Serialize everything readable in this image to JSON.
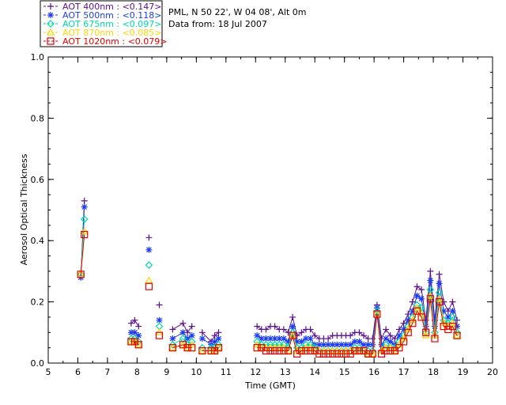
{
  "header": {
    "site": "PML, N 50 22', W 04 08', Alt 0m",
    "date": "Data from: 18 Jul 2007"
  },
  "legend": [
    {
      "label": "AOT  400nm : <0.147>",
      "color": "#5b0f8f",
      "marker": "plus"
    },
    {
      "label": "AOT  500nm : <0.118>",
      "color": "#1c3cf0",
      "marker": "star"
    },
    {
      "label": "AOT  675nm : <0.097>",
      "color": "#00d9a8",
      "marker": "diamond"
    },
    {
      "label": "AOT  870nm : <0.085>",
      "color": "#ffd400",
      "marker": "triangle"
    },
    {
      "label": "AOT 1020nm : <0.079>",
      "color": "#e60000",
      "marker": "square"
    }
  ],
  "chart_data": {
    "type": "line",
    "xlabel": "Time (GMT)",
    "ylabel": "Aerosol Optical Thickness",
    "xlim": [
      5,
      20
    ],
    "ylim": [
      0.0,
      1.0
    ],
    "xticks": [
      "5",
      "6",
      "7",
      "8",
      "9",
      "10",
      "11",
      "12",
      "13",
      "14",
      "15",
      "16",
      "17",
      "18",
      "19",
      "20"
    ],
    "yticks": [
      "0.0",
      "0.2",
      "0.4",
      "0.6",
      "0.8",
      "1.0"
    ],
    "x": [
      6.1,
      6.22,
      7.8,
      7.92,
      8.05,
      8.4,
      8.75,
      9.2,
      9.55,
      9.7,
      9.85,
      10.2,
      10.5,
      10.62,
      10.75,
      12.05,
      12.2,
      12.35,
      12.5,
      12.65,
      12.8,
      12.95,
      13.1,
      13.25,
      13.4,
      13.55,
      13.7,
      13.85,
      14.0,
      14.15,
      14.3,
      14.45,
      14.6,
      14.75,
      14.9,
      15.05,
      15.2,
      15.35,
      15.5,
      15.65,
      15.8,
      15.95,
      16.1,
      16.25,
      16.4,
      16.55,
      16.7,
      16.85,
      17.0,
      17.15,
      17.3,
      17.45,
      17.6,
      17.75,
      17.9,
      18.05,
      18.2,
      18.35,
      18.5,
      18.65,
      18.8
    ],
    "series": [
      {
        "name": "AOT  400nm : <0.147>",
        "values": [
          0.28,
          0.53,
          0.13,
          0.14,
          0.12,
          0.41,
          0.19,
          0.11,
          0.13,
          0.1,
          0.12,
          0.1,
          0.07,
          0.09,
          0.1,
          0.12,
          0.11,
          0.11,
          0.12,
          0.12,
          0.11,
          0.11,
          0.1,
          0.15,
          0.09,
          0.1,
          0.11,
          0.11,
          0.09,
          0.08,
          0.08,
          0.08,
          0.09,
          0.09,
          0.09,
          0.09,
          0.09,
          0.1,
          0.1,
          0.09,
          0.08,
          0.08,
          0.19,
          0.08,
          0.11,
          0.09,
          0.08,
          0.11,
          0.13,
          0.16,
          0.2,
          0.25,
          0.24,
          0.14,
          0.3,
          0.14,
          0.29,
          0.2,
          0.17,
          0.2,
          0.14
        ]
      },
      {
        "name": "AOT  500nm : <0.118>",
        "values": [
          0.28,
          0.51,
          0.1,
          0.1,
          0.09,
          0.37,
          0.14,
          0.08,
          0.1,
          0.08,
          0.09,
          0.08,
          0.06,
          0.07,
          0.08,
          0.09,
          0.08,
          0.08,
          0.08,
          0.08,
          0.08,
          0.08,
          0.07,
          0.12,
          0.07,
          0.07,
          0.08,
          0.08,
          0.06,
          0.06,
          0.06,
          0.06,
          0.06,
          0.06,
          0.06,
          0.06,
          0.06,
          0.07,
          0.07,
          0.06,
          0.06,
          0.06,
          0.18,
          0.06,
          0.08,
          0.07,
          0.06,
          0.09,
          0.11,
          0.14,
          0.17,
          0.22,
          0.21,
          0.12,
          0.27,
          0.12,
          0.26,
          0.17,
          0.15,
          0.17,
          0.12
        ]
      },
      {
        "name": "AOT  675nm : <0.097>",
        "values": [
          0.29,
          0.47,
          0.08,
          0.08,
          0.07,
          0.32,
          0.12,
          0.06,
          0.08,
          0.06,
          0.07,
          0.05,
          0.05,
          0.05,
          0.06,
          0.07,
          0.06,
          0.06,
          0.06,
          0.06,
          0.06,
          0.06,
          0.05,
          0.1,
          0.05,
          0.05,
          0.06,
          0.06,
          0.05,
          0.04,
          0.04,
          0.04,
          0.04,
          0.04,
          0.04,
          0.04,
          0.04,
          0.05,
          0.05,
          0.04,
          0.04,
          0.04,
          0.17,
          0.04,
          0.06,
          0.05,
          0.05,
          0.07,
          0.09,
          0.12,
          0.15,
          0.19,
          0.18,
          0.1,
          0.24,
          0.1,
          0.23,
          0.14,
          0.13,
          0.15,
          0.1
        ]
      },
      {
        "name": "AOT  870nm : <0.085>",
        "values": [
          0.29,
          0.43,
          0.07,
          0.07,
          0.06,
          0.27,
          0.1,
          0.05,
          0.06,
          0.05,
          0.06,
          0.04,
          0.04,
          0.04,
          0.05,
          0.06,
          0.05,
          0.05,
          0.05,
          0.05,
          0.05,
          0.05,
          0.04,
          0.09,
          0.04,
          0.04,
          0.05,
          0.05,
          0.04,
          0.04,
          0.04,
          0.04,
          0.04,
          0.04,
          0.04,
          0.04,
          0.04,
          0.04,
          0.04,
          0.04,
          0.03,
          0.03,
          0.16,
          0.04,
          0.05,
          0.05,
          0.04,
          0.06,
          0.08,
          0.11,
          0.14,
          0.18,
          0.16,
          0.09,
          0.22,
          0.09,
          0.21,
          0.13,
          0.12,
          0.13,
          0.09
        ]
      },
      {
        "name": "AOT 1020nm : <0.079>",
        "values": [
          0.29,
          0.42,
          0.07,
          0.07,
          0.06,
          0.25,
          0.09,
          0.05,
          0.06,
          0.05,
          0.05,
          0.04,
          0.04,
          0.04,
          0.05,
          0.05,
          0.05,
          0.04,
          0.04,
          0.04,
          0.04,
          0.04,
          0.04,
          0.09,
          0.03,
          0.04,
          0.04,
          0.04,
          0.04,
          0.03,
          0.03,
          0.03,
          0.03,
          0.03,
          0.03,
          0.03,
          0.03,
          0.04,
          0.04,
          0.04,
          0.03,
          0.03,
          0.16,
          0.03,
          0.04,
          0.04,
          0.04,
          0.05,
          0.07,
          0.1,
          0.13,
          0.17,
          0.15,
          0.1,
          0.21,
          0.08,
          0.2,
          0.12,
          0.11,
          0.12,
          0.09
        ]
      }
    ],
    "segments": [
      [
        0,
        1
      ],
      [
        2,
        4
      ],
      [
        5,
        5
      ],
      [
        6,
        6
      ],
      [
        7,
        10
      ],
      [
        11,
        14
      ],
      [
        15,
        60
      ]
    ]
  }
}
